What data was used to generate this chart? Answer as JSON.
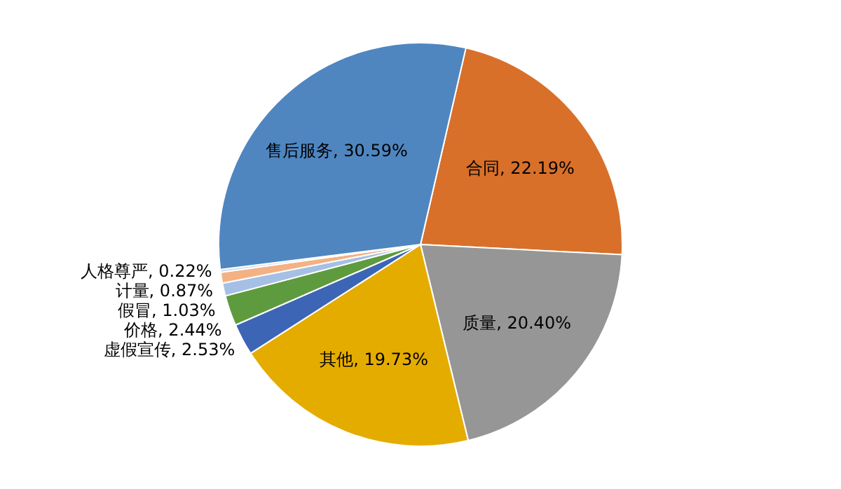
{
  "chart_data": {
    "type": "pie",
    "categories": [
      "合同",
      "质量",
      "其他",
      "虚假宣传",
      "价格",
      "假冒",
      "计量",
      "人格尊严",
      "售后服务"
    ],
    "values": [
      22.19,
      20.4,
      19.73,
      2.53,
      2.44,
      1.03,
      0.87,
      0.22,
      30.59
    ],
    "colors": [
      "#d8702a",
      "#969696",
      "#e5ac00",
      "#3d65b5",
      "#5e9b3e",
      "#a5c0e4",
      "#f4b183",
      "#c9d9ef",
      "#4f86c0"
    ],
    "value_labels": [
      ", 22.19%",
      ", 20.40%",
      ", 19.73%",
      ", 2.53%",
      ", 2.44%",
      ", 1.03%",
      ", 0.87%",
      ", 0.22%",
      ", 30.59%"
    ],
    "legend": false
  }
}
